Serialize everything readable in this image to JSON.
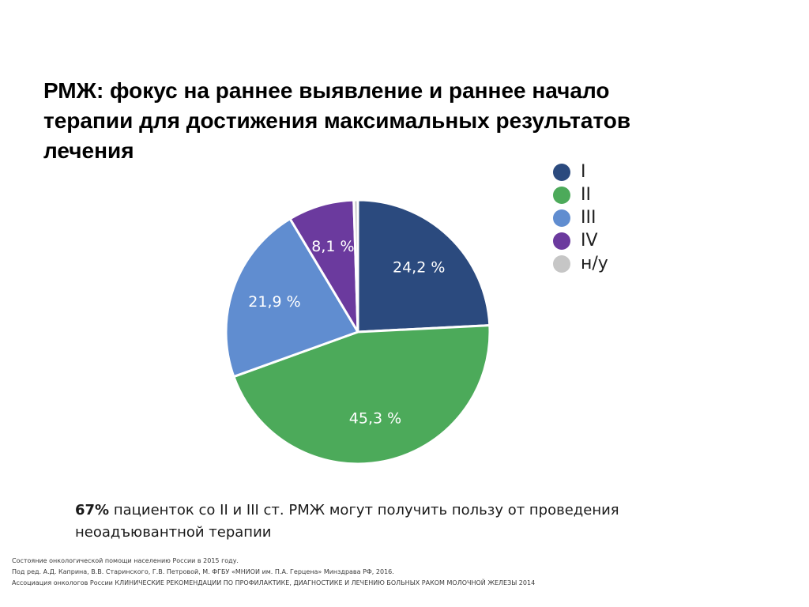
{
  "slide": {
    "title_lines": [
      "РМЖ: фокус на раннее выявление и раннее начало",
      "терапии для достижения максимальных результатов",
      "лечения"
    ],
    "conclusion": {
      "bold": "67%",
      "line1_rest": " пациенток со II и III ст. РМЖ  могут получить пользу от проведения",
      "line2": "неоадъювантной терапии"
    },
    "sources": [
      "Состояние онкологической помощи населению России в 2015 году.",
      "Под ред. А.Д. Каприна, В.В. Старинского, Г.В. Петровой, М. ФГБУ «МНИОИ им. П.А. Герцена» Минздрава РФ, 2016.",
      "Ассоциация онкологов России КЛИНИЧЕСКИЕ РЕКОМЕНДАЦИИ ПО ПРОФИЛАКТИКЕ, ДИАГНОСТИКЕ И ЛЕЧЕНИЮ БОЛЬНЫХ РАКОМ МОЛОЧНОЙ ЖЕЛЕЗЫ 2014"
    ]
  },
  "chart_data": {
    "type": "pie",
    "title": "",
    "categories": [
      "I",
      "II",
      "III",
      "IV",
      "н/у"
    ],
    "values": [
      24.2,
      45.3,
      21.9,
      8.1,
      0.5
    ],
    "labels": [
      "24,2 %",
      "45,3 %",
      "21,9 %",
      "8,1 %",
      ""
    ],
    "colors": [
      "#2b4a7e",
      "#4caa5a",
      "#608dd0",
      "#6b3a9e",
      "#c6c6c6"
    ],
    "legend": {
      "position": "right",
      "entries": [
        "I",
        "II",
        "III",
        "IV",
        "н/у"
      ]
    }
  }
}
